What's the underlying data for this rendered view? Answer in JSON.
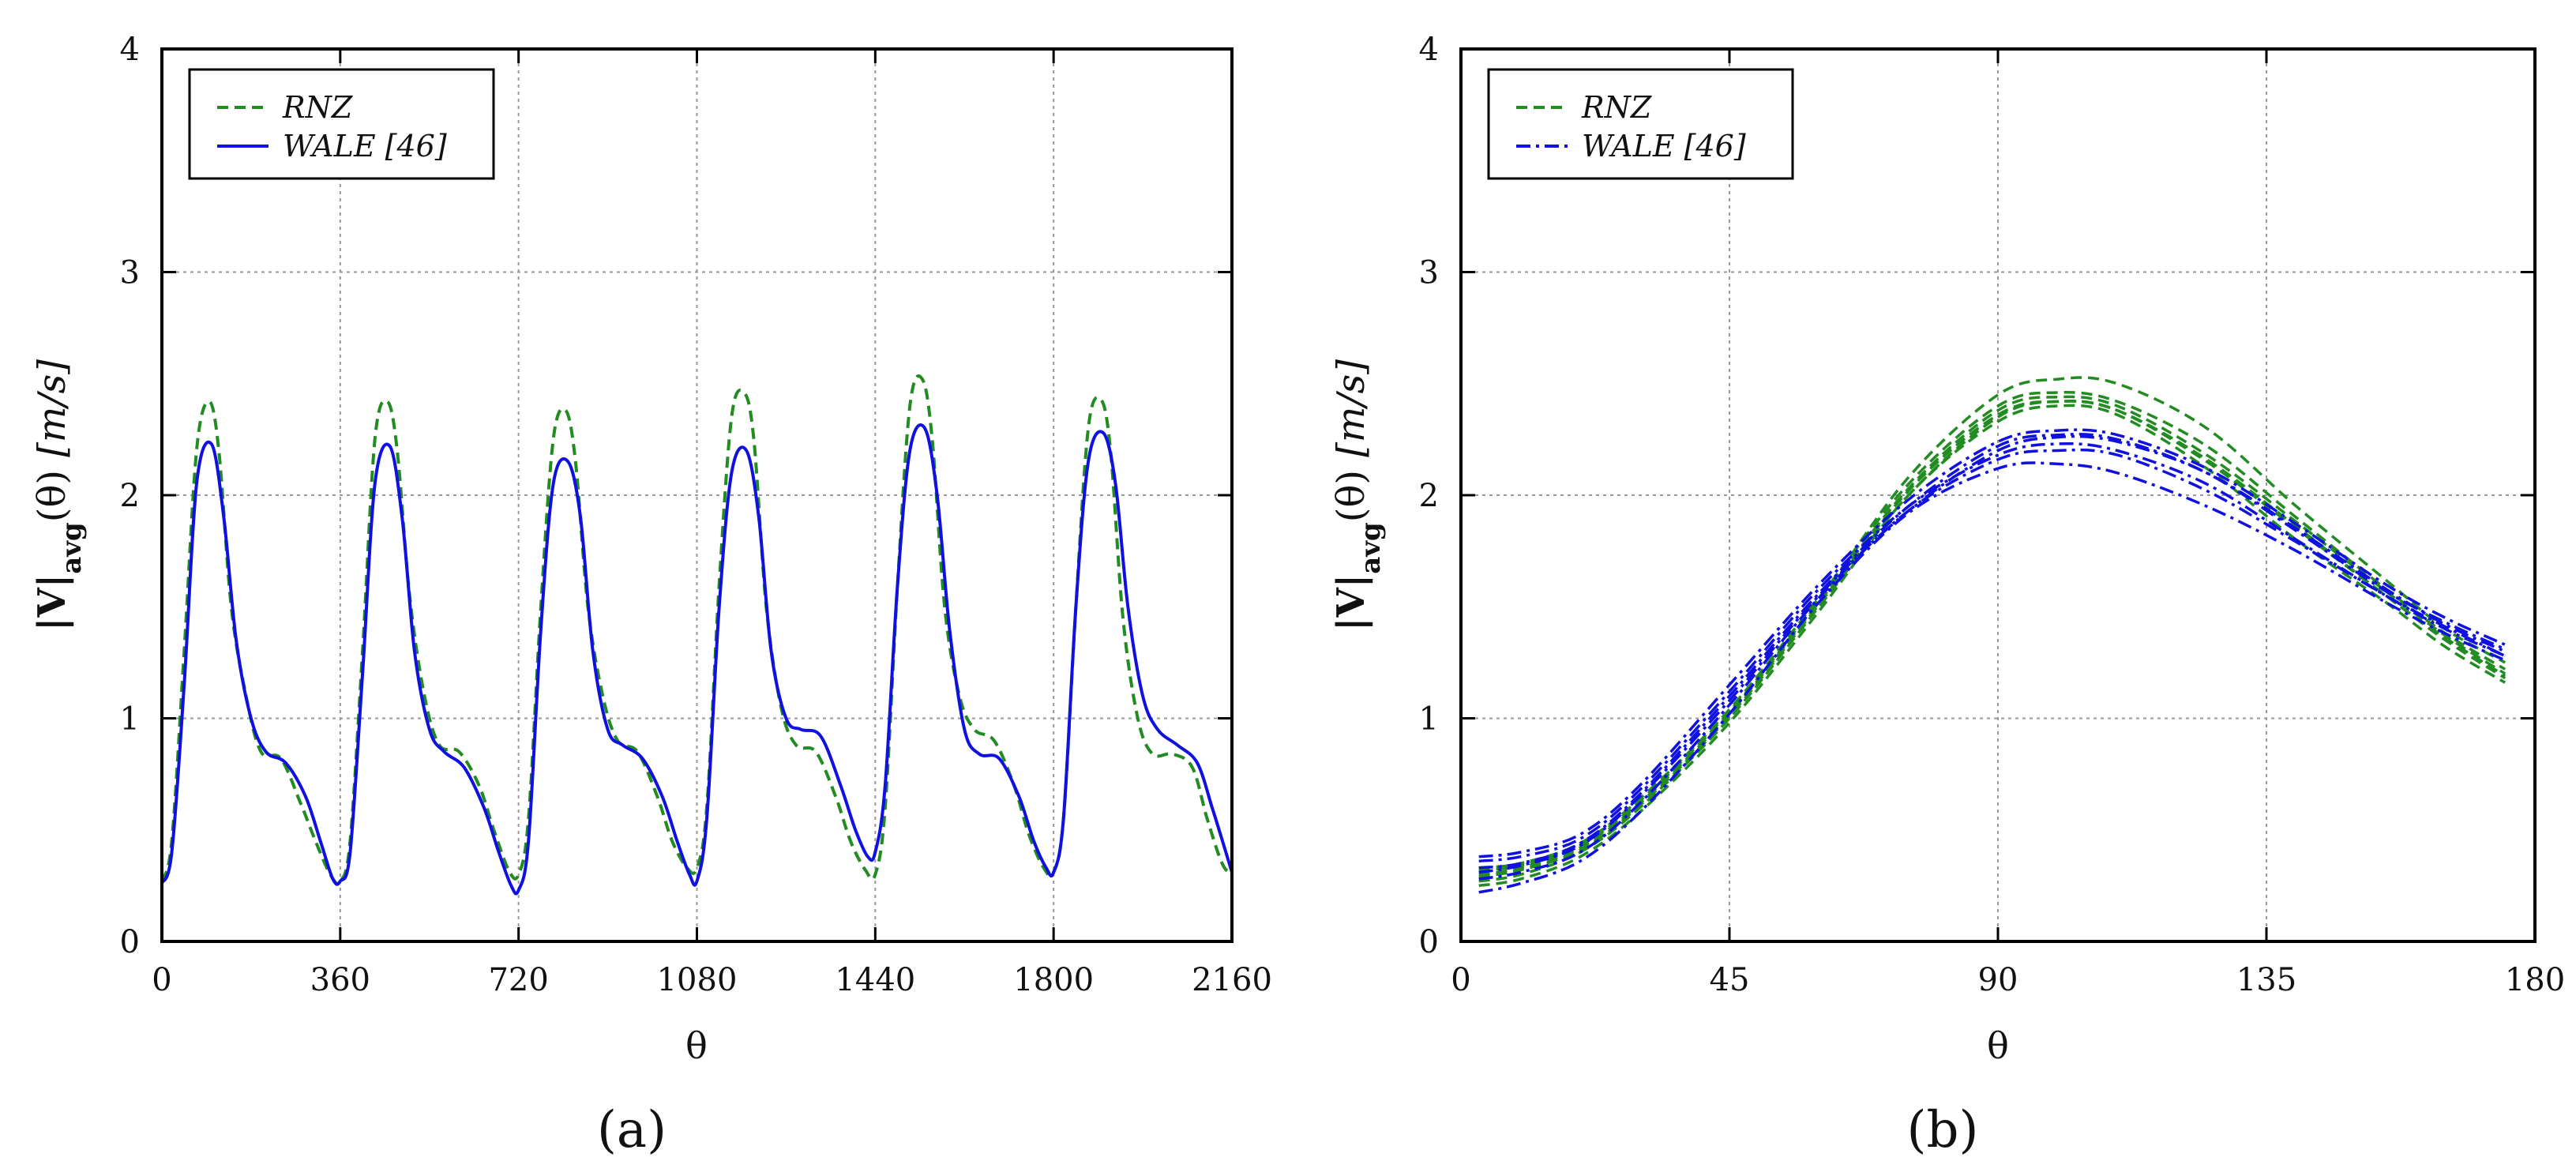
{
  "chart_data": [
    {
      "id": "a",
      "type": "line",
      "panel_label": "(a)",
      "xlabel": "θ",
      "ylabel": {
        "main": "|V|",
        "sub": "avg",
        "tail": "(θ)",
        "unit": "[m/s]"
      },
      "xlim": [
        0,
        2160
      ],
      "ylim": [
        0,
        4
      ],
      "xticks": [
        "0",
        "360",
        "720",
        "1080",
        "1440",
        "1800",
        "2160"
      ],
      "xtick_values": [
        0,
        360,
        720,
        1080,
        1440,
        1800,
        2160
      ],
      "yticks": [
        "0",
        "1",
        "2",
        "3",
        "4"
      ],
      "ytick_values": [
        0,
        1,
        2,
        3,
        4
      ],
      "grid": true,
      "legend_position": "top-left",
      "series": [
        {
          "name": "RNZ",
          "legend": "RNZ",
          "color": "#228B22",
          "dash": "dashed",
          "cycle_length": 360,
          "cycle_offsets": [
            0,
            360,
            720,
            1080,
            1440,
            1800
          ],
          "cycles": [
            {
              "x": [
                0,
                20,
                45,
                70,
                95,
                115,
                140,
                170,
                200,
                240,
                280,
                310,
                340,
                360
              ],
              "y": [
                0.27,
                0.45,
                1.3,
                2.2,
                2.42,
                2.2,
                1.5,
                1.1,
                0.85,
                0.82,
                0.62,
                0.45,
                0.3,
                0.27
              ]
            },
            {
              "x": [
                0,
                20,
                45,
                70,
                95,
                115,
                140,
                170,
                200,
                240,
                280,
                310,
                340,
                360
              ],
              "y": [
                0.27,
                0.45,
                1.3,
                2.25,
                2.42,
                2.2,
                1.55,
                1.1,
                0.88,
                0.85,
                0.7,
                0.5,
                0.32,
                0.3
              ]
            },
            {
              "x": [
                0,
                20,
                45,
                70,
                95,
                115,
                140,
                170,
                200,
                240,
                280,
                310,
                340,
                360
              ],
              "y": [
                0.3,
                0.55,
                1.5,
                2.25,
                2.38,
                2.15,
                1.5,
                1.1,
                0.9,
                0.85,
                0.65,
                0.45,
                0.33,
                0.33
              ]
            },
            {
              "x": [
                0,
                20,
                45,
                70,
                95,
                115,
                140,
                170,
                200,
                240,
                280,
                310,
                340,
                360
              ],
              "y": [
                0.33,
                0.6,
                1.6,
                2.35,
                2.46,
                2.25,
                1.5,
                1.05,
                0.88,
                0.85,
                0.65,
                0.45,
                0.32,
                0.3
              ]
            },
            {
              "x": [
                0,
                20,
                45,
                70,
                95,
                115,
                140,
                170,
                200,
                240,
                280,
                310,
                340,
                360
              ],
              "y": [
                0.3,
                0.6,
                1.6,
                2.4,
                2.52,
                2.25,
                1.5,
                1.1,
                0.95,
                0.9,
                0.7,
                0.48,
                0.33,
                0.31
              ]
            },
            {
              "x": [
                0,
                20,
                45,
                70,
                95,
                115,
                140,
                170,
                200,
                240,
                280,
                310,
                340,
                360
              ],
              "y": [
                0.31,
                0.55,
                1.5,
                2.3,
                2.43,
                2.2,
                1.45,
                1.0,
                0.84,
                0.84,
                0.78,
                0.55,
                0.35,
                0.3
              ]
            }
          ]
        },
        {
          "name": "WALE [46]",
          "legend": "WALE [46]",
          "color": "#1010E0",
          "dash": "solid",
          "cycle_length": 360,
          "cycle_offsets": [
            0,
            360,
            720,
            1080,
            1440,
            1800
          ],
          "cycles": [
            {
              "x": [
                0,
                20,
                45,
                70,
                100,
                125,
                150,
                180,
                210,
                250,
                290,
                320,
                345,
                360
              ],
              "y": [
                0.26,
                0.4,
                1.15,
                2.05,
                2.23,
                1.9,
                1.35,
                1.0,
                0.85,
                0.8,
                0.65,
                0.45,
                0.28,
                0.27
              ]
            },
            {
              "x": [
                0,
                20,
                45,
                70,
                100,
                125,
                150,
                180,
                210,
                250,
                290,
                320,
                345,
                360
              ],
              "y": [
                0.27,
                0.4,
                1.2,
                2.05,
                2.22,
                1.9,
                1.3,
                0.95,
                0.85,
                0.78,
                0.6,
                0.4,
                0.25,
                0.23
              ]
            },
            {
              "x": [
                0,
                20,
                45,
                70,
                100,
                125,
                150,
                180,
                210,
                250,
                290,
                320,
                345,
                360
              ],
              "y": [
                0.23,
                0.45,
                1.4,
                2.05,
                2.15,
                1.9,
                1.3,
                0.95,
                0.88,
                0.82,
                0.65,
                0.45,
                0.3,
                0.27
              ]
            },
            {
              "x": [
                0,
                20,
                45,
                70,
                100,
                125,
                150,
                180,
                210,
                250,
                290,
                320,
                345,
                360
              ],
              "y": [
                0.27,
                0.55,
                1.5,
                2.1,
                2.2,
                1.9,
                1.3,
                1.0,
                0.95,
                0.92,
                0.7,
                0.5,
                0.38,
                0.4
              ]
            },
            {
              "x": [
                0,
                20,
                45,
                70,
                100,
                125,
                150,
                180,
                210,
                250,
                290,
                320,
                345,
                360
              ],
              "y": [
                0.4,
                0.7,
                1.6,
                2.2,
                2.3,
                2.0,
                1.4,
                0.95,
                0.84,
                0.82,
                0.65,
                0.45,
                0.33,
                0.31
              ]
            },
            {
              "x": [
                0,
                20,
                45,
                70,
                100,
                125,
                150,
                180,
                210,
                250,
                290,
                320,
                345,
                360
              ],
              "y": [
                0.31,
                0.55,
                1.5,
                2.15,
                2.28,
                2.05,
                1.5,
                1.1,
                0.95,
                0.88,
                0.8,
                0.6,
                0.42,
                0.31
              ]
            }
          ]
        }
      ]
    },
    {
      "id": "b",
      "type": "line",
      "panel_label": "(b)",
      "xlabel": "θ",
      "ylabel": {
        "main": "|V|",
        "sub": "avg",
        "tail": "(θ)",
        "unit": "[m/s]"
      },
      "xlim": [
        0,
        180
      ],
      "ylim": [
        0,
        4
      ],
      "xticks": [
        "0",
        "45",
        "90",
        "135",
        "180"
      ],
      "xtick_values": [
        0,
        45,
        90,
        135,
        180
      ],
      "yticks": [
        "0",
        "1",
        "2",
        "3",
        "4"
      ],
      "ytick_values": [
        0,
        1,
        2,
        3,
        4
      ],
      "grid": true,
      "legend_position": "top-left",
      "x": [
        3,
        10,
        20,
        30,
        45,
        60,
        75,
        90,
        100,
        110,
        125,
        140,
        155,
        165,
        175
      ],
      "series": [
        {
          "name": "RNZ",
          "legend": "RNZ",
          "color": "#228B22",
          "dash": "dashed",
          "curves": [
            [
              0.27,
              0.3,
              0.4,
              0.6,
              1.0,
              1.5,
              2.0,
              2.35,
              2.42,
              2.38,
              2.15,
              1.85,
              1.55,
              1.35,
              1.18
            ],
            [
              0.3,
              0.33,
              0.42,
              0.62,
              1.02,
              1.52,
              2.03,
              2.38,
              2.44,
              2.4,
              2.18,
              1.88,
              1.57,
              1.37,
              1.2
            ],
            [
              0.33,
              0.35,
              0.44,
              0.64,
              1.04,
              1.54,
              2.05,
              2.4,
              2.46,
              2.42,
              2.22,
              1.9,
              1.58,
              1.38,
              1.22
            ],
            [
              0.25,
              0.28,
              0.38,
              0.58,
              0.98,
              1.48,
              2.0,
              2.33,
              2.4,
              2.36,
              2.12,
              1.8,
              1.52,
              1.32,
              1.16
            ],
            [
              0.32,
              0.34,
              0.43,
              0.63,
              1.03,
              1.53,
              2.08,
              2.45,
              2.52,
              2.5,
              2.3,
              1.95,
              1.62,
              1.4,
              1.25
            ],
            [
              0.29,
              0.32,
              0.41,
              0.61,
              1.01,
              1.51,
              2.02,
              2.36,
              2.42,
              2.38,
              2.16,
              1.86,
              1.55,
              1.36,
              1.19
            ]
          ]
        },
        {
          "name": "WALE [46]",
          "legend": "WALE [46]",
          "color": "#1010E0",
          "dash": "dashdot",
          "curves": [
            [
              0.36,
              0.38,
              0.46,
              0.68,
              1.12,
              1.58,
              1.95,
              2.18,
              2.23,
              2.2,
              2.05,
              1.8,
              1.55,
              1.4,
              1.28
            ],
            [
              0.31,
              0.34,
              0.43,
              0.65,
              1.08,
              1.55,
              1.93,
              2.2,
              2.26,
              2.24,
              2.1,
              1.85,
              1.58,
              1.42,
              1.3
            ],
            [
              0.22,
              0.26,
              0.36,
              0.58,
              1.02,
              1.52,
              1.92,
              2.12,
              2.14,
              2.1,
              1.95,
              1.75,
              1.52,
              1.38,
              1.26
            ],
            [
              0.38,
              0.4,
              0.48,
              0.7,
              1.15,
              1.6,
              1.98,
              2.24,
              2.29,
              2.27,
              2.12,
              1.87,
              1.6,
              1.45,
              1.33
            ],
            [
              0.28,
              0.31,
              0.4,
              0.62,
              1.06,
              1.54,
              1.93,
              2.16,
              2.2,
              2.18,
              2.02,
              1.79,
              1.55,
              1.41,
              1.28
            ],
            [
              0.33,
              0.35,
              0.44,
              0.66,
              1.1,
              1.56,
              1.95,
              2.22,
              2.27,
              2.25,
              2.1,
              1.84,
              1.57,
              1.43,
              1.31
            ]
          ]
        }
      ]
    }
  ]
}
